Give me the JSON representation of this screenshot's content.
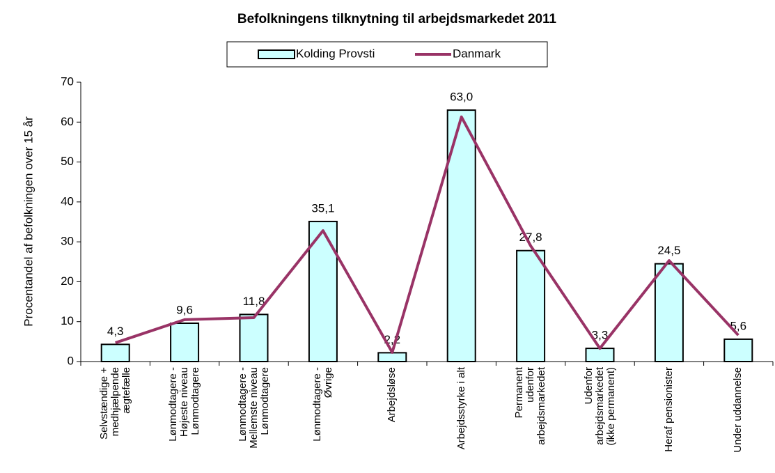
{
  "chart_data": {
    "type": "bar_line",
    "title": "Befolkningens tilknytning til arbejdsmarkedet 2011",
    "y_label": "Procentandel af befolkningen over 15 år",
    "categories": [
      "Selvstændige +\nmedhjælpende\nægtefælle",
      "Lønmodtagere -\nHøjeste niveau\nLønmodtagere",
      "Lønmodtagere -\nMellemste niveau\nLønmodtagere",
      "Lønmodtagere -\nØvrige",
      "Arbejdsløse",
      "Arbejdsstyrke i alt",
      "Permanent\nudenfor\narbejdsmarkedet",
      "Udenfor\narbejdsmarkedet\n(ikke permanent)",
      "Heraf pensionister",
      "Under uddannelse"
    ],
    "series": [
      {
        "name": "Kolding Provsti",
        "type": "bar",
        "color": "#ccffff",
        "values": [
          4.3,
          9.6,
          11.8,
          35.1,
          2.2,
          63.0,
          27.8,
          3.3,
          24.5,
          5.6
        ],
        "value_labels": [
          "4,3",
          "9,6",
          "11,8",
          "35,1",
          "2,2",
          "63,0",
          "27,8",
          "3,3",
          "24,5",
          "5,6"
        ]
      },
      {
        "name": "Danmark",
        "type": "line",
        "color": "#993366",
        "values": [
          4.7,
          10.5,
          11.0,
          32.8,
          2.3,
          61.3,
          29.0,
          3.3,
          25.3,
          6.6
        ]
      }
    ],
    "ylim": [
      0,
      70
    ],
    "yticks": [
      0,
      10,
      20,
      30,
      40,
      50,
      60,
      70
    ],
    "grid": false,
    "legend": "top"
  }
}
